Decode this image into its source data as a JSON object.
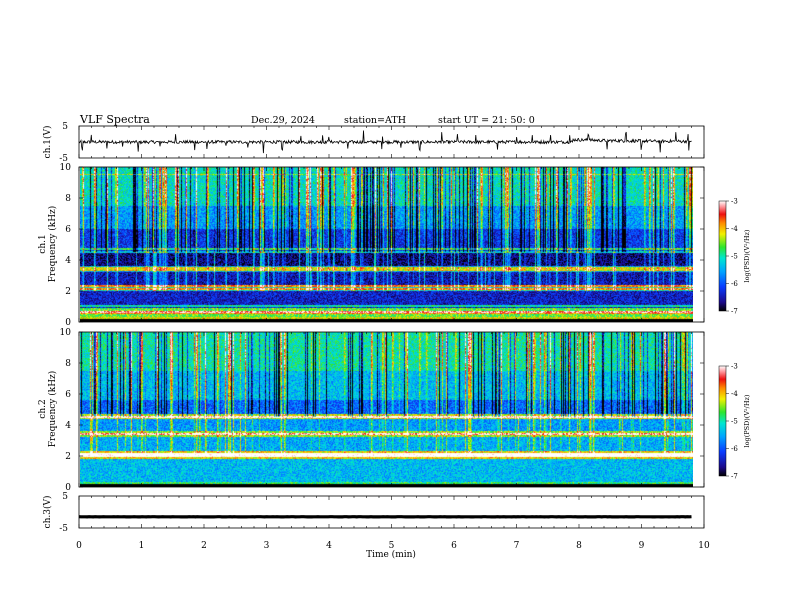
{
  "header": {
    "title": "VLF  Spectra",
    "date": "Dec.29, 2024",
    "station": "station=ATH",
    "start": "start  UT  =   21: 50: 0"
  },
  "chart_data": [
    {
      "type": "line",
      "name": "ch1-waveform",
      "ylabel": "ch.1(V)",
      "ylim": [
        -5,
        5
      ],
      "yticks": [
        "5",
        "-5"
      ],
      "xlim": [
        0,
        10
      ],
      "x_end": 9.8,
      "baseline": 0,
      "noise_amplitude": 0.6,
      "step_up": {
        "x": 7.9,
        "offset": 0.6
      },
      "spikes": [
        0.05,
        0.2,
        0.45,
        0.7,
        0.95,
        1.3,
        1.55,
        1.85,
        2.05,
        2.35,
        2.7,
        2.95,
        3.25,
        3.55,
        3.9,
        4.0,
        4.3,
        4.55,
        4.85,
        5.15,
        5.45,
        5.8,
        6.05,
        6.35,
        6.7,
        7.0,
        7.25,
        7.55,
        7.85,
        8.15,
        8.45,
        8.75,
        9.0,
        9.3,
        9.55,
        9.75
      ]
    },
    {
      "type": "heatmap",
      "name": "ch1-spectrogram",
      "ylabel": "ch.1\nFrequency  (kHz)",
      "ylim": [
        0,
        10
      ],
      "yticks": [
        "0",
        "2",
        "4",
        "6",
        "8",
        "10"
      ],
      "xlim": [
        0,
        10
      ],
      "x_end": 9.8,
      "colorbar": {
        "label": "log(PSD)(V²/Hz)",
        "range": [
          -7,
          -3
        ],
        "ticks": [
          "-3",
          "-4",
          "-5",
          "-6",
          "-7"
        ]
      },
      "background_bands": [
        {
          "f": [
            0,
            0.3
          ],
          "level": -4.2
        },
        {
          "f": [
            0.3,
            0.9
          ],
          "level": -4.6
        },
        {
          "f": [
            0.9,
            2.0
          ],
          "level": -6.4
        },
        {
          "f": [
            2.0,
            2.4
          ],
          "level": -5.2
        },
        {
          "f": [
            2.4,
            3.2
          ],
          "level": -6.5
        },
        {
          "f": [
            3.2,
            3.6
          ],
          "level": -5.6
        },
        {
          "f": [
            3.6,
            4.6
          ],
          "level": -6.7
        },
        {
          "f": [
            4.6,
            6.0
          ],
          "level": -6.2
        },
        {
          "f": [
            6.0,
            7.5
          ],
          "level": -5.6
        },
        {
          "f": [
            7.5,
            10.0
          ],
          "level": -5.1
        }
      ],
      "lines_khz": [
        0.6,
        1.0,
        2.1,
        2.3,
        3.35,
        3.5,
        4.5,
        4.7
      ],
      "sferic_density_per_min": 14
    },
    {
      "type": "heatmap",
      "name": "ch2-spectrogram",
      "ylabel": "ch.2\nFrequency  (kHz)",
      "ylim": [
        0,
        10
      ],
      "yticks": [
        "0",
        "2",
        "4",
        "6",
        "8",
        "10"
      ],
      "xlim": [
        0,
        10
      ],
      "x_end": 9.8,
      "colorbar": {
        "label": "log(PSD)(V²/Hz)",
        "range": [
          -7,
          -3
        ],
        "ticks": [
          "-3",
          "-4",
          "-5",
          "-6",
          "-7"
        ]
      },
      "background_bands": [
        {
          "f": [
            0,
            0.3
          ],
          "level": -4.8
        },
        {
          "f": [
            0.3,
            1.8
          ],
          "level": -5.4
        },
        {
          "f": [
            1.8,
            2.3
          ],
          "level": -4.1
        },
        {
          "f": [
            2.3,
            3.2
          ],
          "level": -5.5
        },
        {
          "f": [
            3.2,
            3.6
          ],
          "level": -4.5
        },
        {
          "f": [
            3.6,
            4.4
          ],
          "level": -5.6
        },
        {
          "f": [
            4.4,
            4.7
          ],
          "level": -4.3
        },
        {
          "f": [
            4.7,
            5.6
          ],
          "level": -5.9
        },
        {
          "f": [
            5.6,
            7.5
          ],
          "level": -5.4
        },
        {
          "f": [
            7.5,
            10.0
          ],
          "level": -5.0
        }
      ],
      "lines_khz": [
        2.0,
        2.1,
        3.4,
        4.5
      ],
      "sferic_density_per_min": 10
    },
    {
      "type": "line",
      "name": "ch3-waveform",
      "ylabel": "ch.3(V)",
      "ylim": [
        -5,
        5
      ],
      "yticks": [
        "5",
        "-5"
      ],
      "xlim": [
        0,
        10
      ],
      "x_end": 9.8,
      "baseline": -1.5,
      "noise_amplitude": 0.25
    }
  ],
  "xaxis": {
    "label": "Time  (min)",
    "ticks": [
      "0",
      "1",
      "2",
      "3",
      "4",
      "5",
      "6",
      "7",
      "8",
      "9",
      "10"
    ]
  }
}
